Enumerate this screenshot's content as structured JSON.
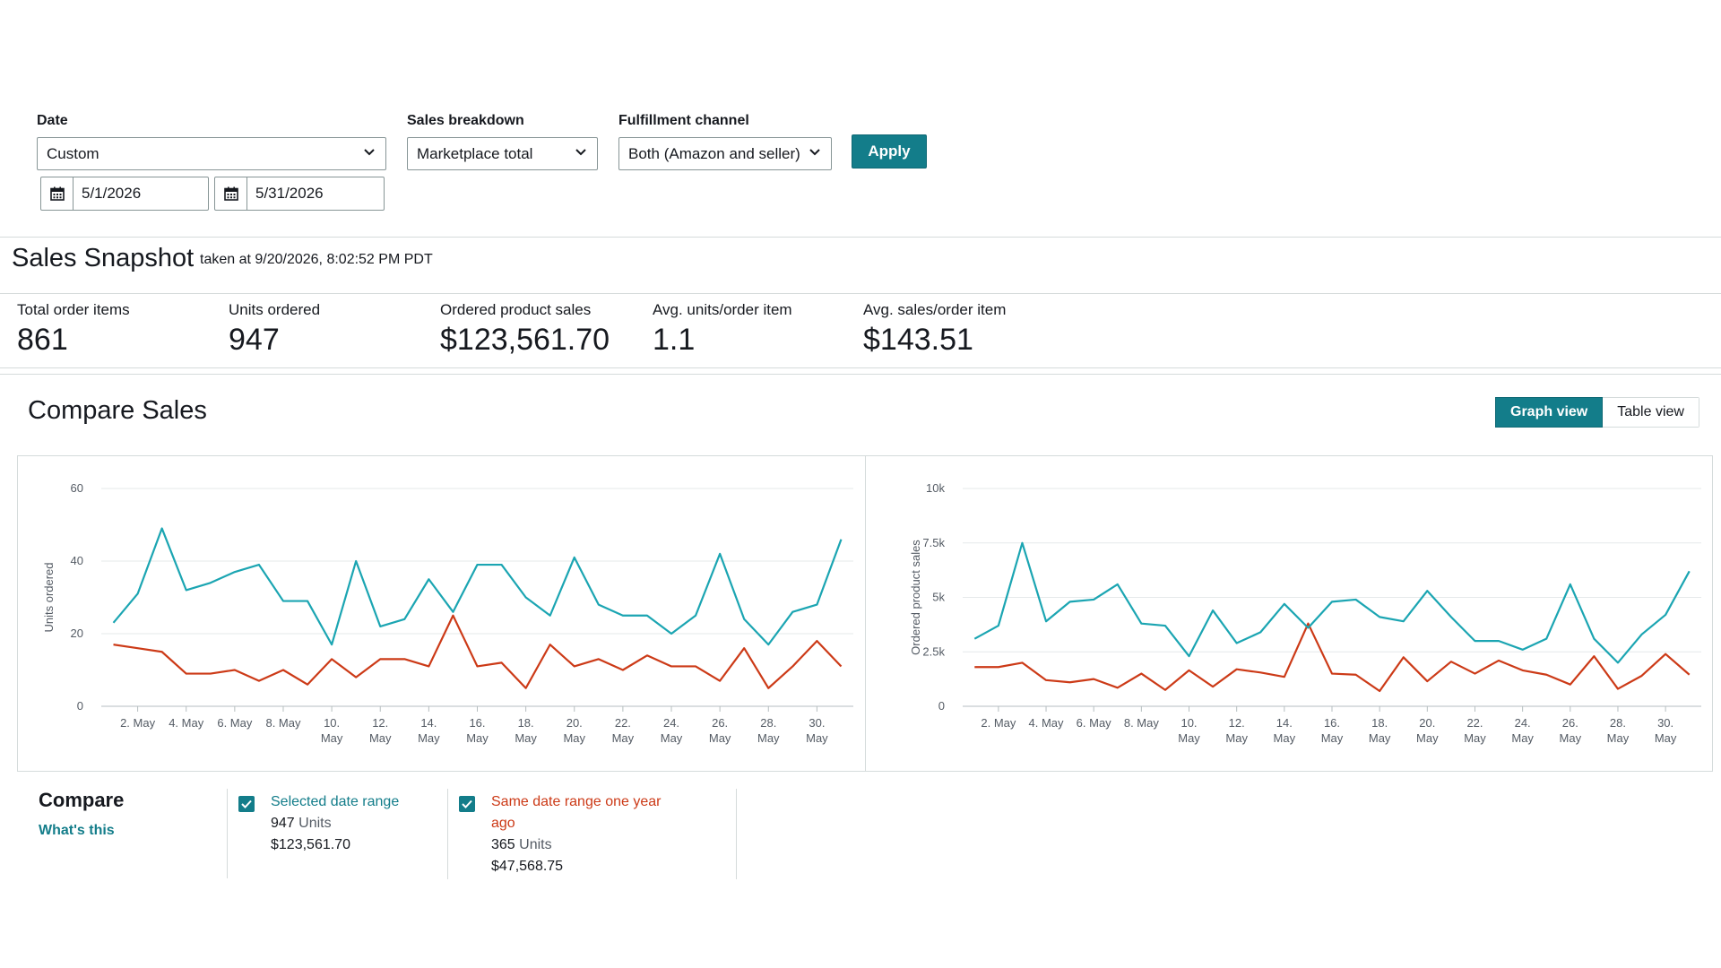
{
  "filters": {
    "date_label": "Date",
    "date_value": "Custom",
    "start_date": "5/1/2026",
    "end_date": "5/31/2026",
    "breakdown_label": "Sales breakdown",
    "breakdown_value": "Marketplace total",
    "fulfillment_label": "Fulfillment channel",
    "fulfillment_value": "Both (Amazon and seller)",
    "apply_label": "Apply"
  },
  "snapshot": {
    "title": "Sales Snapshot",
    "taken": "taken at 9/20/2026, 8:02:52 PM PDT",
    "metrics": [
      {
        "label": "Total order items",
        "value": "861"
      },
      {
        "label": "Units ordered",
        "value": "947"
      },
      {
        "label": "Ordered product sales",
        "value": "$123,561.70"
      },
      {
        "label": "Avg. units/order item",
        "value": "1.1"
      },
      {
        "label": "Avg. sales/order item",
        "value": "$143.51"
      }
    ]
  },
  "compare_sales": {
    "title": "Compare Sales",
    "graph_view_label": "Graph view",
    "table_view_label": "Table view"
  },
  "colors": {
    "selected": "#1ba5b2",
    "last_year": "#cc3a17",
    "accent": "#137d8a"
  },
  "chart_data": [
    {
      "type": "line",
      "ylabel": "Units ordered",
      "ylim": [
        0,
        60
      ],
      "yticks": [
        0,
        20,
        40,
        60
      ],
      "ytick_labels": [
        "0",
        "20",
        "40",
        "60"
      ],
      "x": [
        1,
        2,
        3,
        4,
        5,
        6,
        7,
        8,
        9,
        10,
        11,
        12,
        13,
        14,
        15,
        16,
        17,
        18,
        19,
        20,
        21,
        22,
        23,
        24,
        25,
        26,
        27,
        28,
        29,
        30,
        31
      ],
      "xtick_positions": [
        2,
        4,
        6,
        8,
        10,
        12,
        14,
        16,
        18,
        20,
        22,
        24,
        26,
        28,
        30
      ],
      "xtick_labels": [
        [
          "2. May"
        ],
        [
          "4. May"
        ],
        [
          "6. May"
        ],
        [
          "8. May"
        ],
        [
          "10.",
          "May"
        ],
        [
          "12.",
          "May"
        ],
        [
          "14.",
          "May"
        ],
        [
          "16.",
          "May"
        ],
        [
          "18.",
          "May"
        ],
        [
          "20.",
          "May"
        ],
        [
          "22.",
          "May"
        ],
        [
          "24.",
          "May"
        ],
        [
          "26.",
          "May"
        ],
        [
          "28.",
          "May"
        ],
        [
          "30.",
          "May"
        ]
      ],
      "grid": true,
      "series": [
        {
          "values": [
            23,
            31,
            49,
            32,
            34,
            37,
            39,
            29,
            29,
            17,
            40,
            22,
            24,
            35,
            26,
            39,
            39,
            30,
            25,
            41,
            28,
            25,
            25,
            20,
            25,
            42,
            24,
            17,
            26,
            28,
            46
          ]
        },
        {
          "values": [
            17,
            16,
            15,
            9,
            9,
            10,
            7,
            10,
            6,
            13,
            8,
            13,
            13,
            11,
            25,
            11,
            12,
            5,
            17,
            11,
            13,
            10,
            14,
            11,
            11,
            7,
            16,
            5,
            11,
            18,
            11
          ]
        }
      ]
    },
    {
      "type": "line",
      "ylabel": "Ordered product sales",
      "ylim": [
        0,
        10000
      ],
      "yticks": [
        0,
        2500,
        5000,
        7500,
        10000
      ],
      "ytick_labels": [
        "0",
        "2.5k",
        "5k",
        "7.5k",
        "10k"
      ],
      "x": [
        1,
        2,
        3,
        4,
        5,
        6,
        7,
        8,
        9,
        10,
        11,
        12,
        13,
        14,
        15,
        16,
        17,
        18,
        19,
        20,
        21,
        22,
        23,
        24,
        25,
        26,
        27,
        28,
        29,
        30,
        31
      ],
      "xtick_positions": [
        2,
        4,
        6,
        8,
        10,
        12,
        14,
        16,
        18,
        20,
        22,
        24,
        26,
        28,
        30
      ],
      "xtick_labels": [
        [
          "2. May"
        ],
        [
          "4. May"
        ],
        [
          "6. May"
        ],
        [
          "8. May"
        ],
        [
          "10.",
          "May"
        ],
        [
          "12.",
          "May"
        ],
        [
          "14.",
          "May"
        ],
        [
          "16.",
          "May"
        ],
        [
          "18.",
          "May"
        ],
        [
          "20.",
          "May"
        ],
        [
          "22.",
          "May"
        ],
        [
          "24.",
          "May"
        ],
        [
          "26.",
          "May"
        ],
        [
          "28.",
          "May"
        ],
        [
          "30.",
          "May"
        ]
      ],
      "grid": true,
      "series": [
        {
          "values": [
            3100,
            3700,
            7500,
            3900,
            4800,
            4900,
            5600,
            3800,
            3700,
            2300,
            4400,
            2900,
            3400,
            4700,
            3600,
            4800,
            4900,
            4100,
            3900,
            5300,
            4100,
            3000,
            3000,
            2600,
            3100,
            5600,
            3100,
            2000,
            3300,
            4200,
            6200
          ]
        },
        {
          "values": [
            1800,
            1800,
            2000,
            1200,
            1100,
            1250,
            850,
            1500,
            750,
            1650,
            900,
            1700,
            1550,
            1350,
            3800,
            1500,
            1450,
            700,
            2250,
            1150,
            2050,
            1500,
            2100,
            1650,
            1450,
            1000,
            2300,
            800,
            1400,
            2400,
            1450
          ]
        }
      ]
    }
  ],
  "legend": {
    "title": "Compare",
    "link": "What's this",
    "selected": {
      "name": "Selected date range",
      "units_value": "947",
      "units_word": "Units",
      "sales": "$123,561.70"
    },
    "last_year": {
      "name": "Same date range one year ago",
      "units_value": "365",
      "units_word": "Units",
      "sales": "$47,568.75"
    }
  }
}
